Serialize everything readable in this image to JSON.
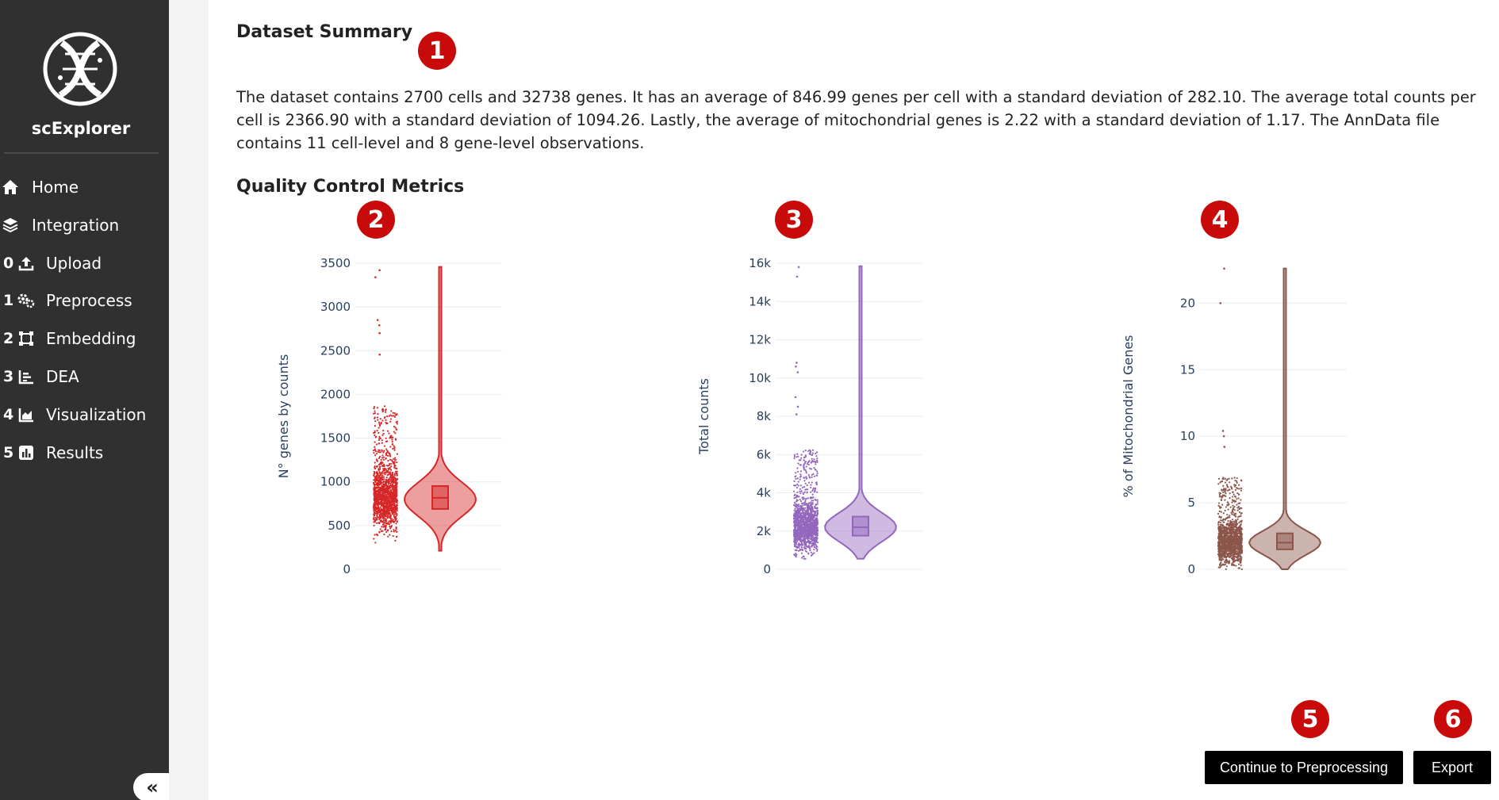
{
  "sidebar": {
    "app_name": "scExplorer",
    "items": [
      {
        "num": "",
        "icon": "home-icon",
        "label": "Home"
      },
      {
        "num": "",
        "icon": "layers-icon",
        "label": "Integration"
      },
      {
        "num": "0",
        "icon": "upload-icon",
        "label": "Upload"
      },
      {
        "num": "1",
        "icon": "gears-icon",
        "label": "Preprocess"
      },
      {
        "num": "2",
        "icon": "vector-square-icon",
        "label": "Embedding"
      },
      {
        "num": "3",
        "icon": "list-chart-icon",
        "label": "DEA"
      },
      {
        "num": "4",
        "icon": "area-chart-icon",
        "label": "Visualization"
      },
      {
        "num": "5",
        "icon": "bar-chart-icon",
        "label": "Results"
      }
    ],
    "collapse_label": "«"
  },
  "main": {
    "summary_heading": "Dataset Summary",
    "summary_text": "The dataset contains 2700 cells and 32738 genes. It has an average of 846.99 genes per cell with a standard deviation of 282.10. The average total counts per cell is 2366.90 with a standard deviation of 1094.26. Lastly, the average of mitochondrial genes is 2.22 with a standard deviation of 1.17. The AnnData file contains 11 cell-level and 8 gene-level observations.",
    "qc_heading": "Quality Control Metrics"
  },
  "markers": [
    "1",
    "2",
    "3",
    "4",
    "5",
    "6"
  ],
  "buttons": {
    "continue": "Continue to Preprocessing",
    "export": "Export"
  },
  "colors": {
    "sidebar_bg": "#303030",
    "marker_red": "#c90a0a",
    "genes": "#d62728",
    "counts": "#9467bd",
    "mito": "#8c564b"
  },
  "chart_data": [
    {
      "type": "violin",
      "ylabel": "N° genes by counts",
      "ylim": [
        0,
        3500
      ],
      "yticks": [
        0,
        500,
        1000,
        1500,
        2000,
        2500,
        3000,
        3500
      ],
      "ytick_labels": [
        "0",
        "500",
        "1000",
        "1500",
        "2000",
        "2500",
        "3000",
        "3500"
      ],
      "color": "#d62728",
      "min": 212,
      "max": 3458,
      "q1": 690,
      "median": 817,
      "q3": 952,
      "peak": 800,
      "outliers": [
        2455,
        2700,
        2790,
        2850,
        3340,
        3420
      ]
    },
    {
      "type": "violin",
      "ylabel": "Total counts",
      "ylim": [
        0,
        16000
      ],
      "yticks": [
        0,
        2000,
        4000,
        6000,
        8000,
        10000,
        12000,
        14000,
        16000
      ],
      "ytick_labels": [
        "0",
        "2k",
        "4k",
        "6k",
        "8k",
        "10k",
        "12k",
        "14k",
        "16k"
      ],
      "color": "#9467bd",
      "min": 548,
      "max": 15844,
      "q1": 1758,
      "median": 2197,
      "q3": 2754,
      "peak": 2200,
      "outliers": [
        8100,
        8500,
        9000,
        10300,
        10600,
        10800,
        15300,
        15800
      ]
    },
    {
      "type": "violin",
      "ylabel": "% of Mitochondrial Genes",
      "ylim": [
        0,
        23
      ],
      "yticks": [
        0,
        5,
        10,
        15,
        20
      ],
      "ytick_labels": [
        "0",
        "5",
        "10",
        "15",
        "20"
      ],
      "color": "#8c564b",
      "min": 0,
      "max": 22.6,
      "q1": 1.5,
      "median": 2.0,
      "q3": 2.7,
      "peak": 2.0,
      "outliers": [
        9.2,
        10.0,
        10.4,
        20.0,
        22.6
      ]
    }
  ]
}
